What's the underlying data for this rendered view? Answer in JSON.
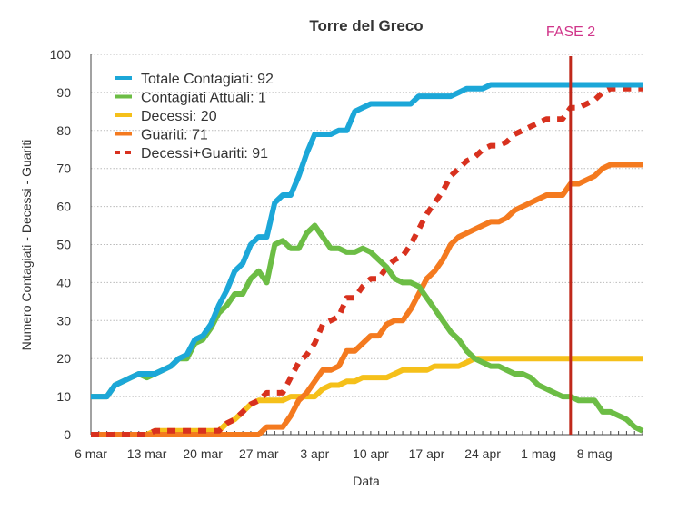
{
  "chart_data": {
    "type": "line",
    "title": "Torre del Greco",
    "annotation": {
      "label": "FASE 2",
      "x_day": 60,
      "color": "#c0281a",
      "label_color": "#d0358a"
    },
    "xlabel": "Data",
    "ylabel": "Numero Contagiati - Decessi - Guariti",
    "ylim": [
      0,
      100
    ],
    "yticks": [
      0,
      10,
      20,
      30,
      40,
      50,
      60,
      70,
      80,
      90,
      100
    ],
    "xlim_days": [
      0,
      69
    ],
    "xticks": [
      {
        "day": 0,
        "label": "6 mar"
      },
      {
        "day": 7,
        "label": "13 mar"
      },
      {
        "day": 14,
        "label": "20 mar"
      },
      {
        "day": 21,
        "label": "27 mar"
      },
      {
        "day": 28,
        "label": "3 apr"
      },
      {
        "day": 35,
        "label": "10 apr"
      },
      {
        "day": 42,
        "label": "17 apr"
      },
      {
        "day": 49,
        "label": "24 apr"
      },
      {
        "day": 56,
        "label": "1 mag"
      },
      {
        "day": 63,
        "label": "8 mag"
      }
    ],
    "grid": true,
    "legend_position": "top-left",
    "series": [
      {
        "name": "Totale Contagiati: 92",
        "color": "#1ca7d8",
        "dashed": false,
        "values": [
          10,
          10,
          10,
          13,
          14,
          15,
          16,
          16,
          16,
          17,
          18,
          20,
          21,
          25,
          26,
          29,
          34,
          38,
          43,
          45,
          50,
          52,
          52,
          61,
          63,
          63,
          68,
          74,
          79,
          79,
          79,
          80,
          80,
          85,
          86,
          87,
          87,
          87,
          87,
          87,
          87,
          89,
          89,
          89,
          89,
          89,
          90,
          91,
          91,
          91,
          92,
          92,
          92,
          92,
          92,
          92,
          92,
          92,
          92,
          92,
          92,
          92,
          92,
          92,
          92,
          92,
          92,
          92,
          92,
          92
        ]
      },
      {
        "name": "Contagiati Attuali: 1",
        "color": "#6cbd45",
        "dashed": false,
        "values": [
          10,
          10,
          10,
          13,
          14,
          15,
          16,
          15,
          16,
          17,
          18,
          20,
          20,
          24,
          25,
          28,
          32,
          34,
          37,
          37,
          41,
          43,
          40,
          50,
          51,
          49,
          49,
          53,
          55,
          52,
          49,
          49,
          48,
          48,
          49,
          48,
          46,
          44,
          41,
          40,
          40,
          39,
          36,
          33,
          30,
          27,
          25,
          22,
          20,
          19,
          18,
          18,
          17,
          16,
          16,
          15,
          13,
          12,
          11,
          10,
          10,
          9,
          9,
          9,
          6,
          6,
          5,
          4,
          2,
          1
        ]
      },
      {
        "name": "Decessi: 20",
        "color": "#f5c01a",
        "dashed": false,
        "values": [
          0,
          0,
          0,
          0,
          0,
          0,
          0,
          0,
          1,
          1,
          1,
          1,
          1,
          1,
          1,
          1,
          1,
          3,
          4,
          6,
          8,
          9,
          9,
          9,
          9,
          10,
          10,
          10,
          10,
          12,
          13,
          13,
          14,
          14,
          15,
          15,
          15,
          15,
          16,
          17,
          17,
          17,
          17,
          18,
          18,
          18,
          18,
          19,
          20,
          20,
          20,
          20,
          20,
          20,
          20,
          20,
          20,
          20,
          20,
          20,
          20,
          20,
          20,
          20,
          20,
          20,
          20,
          20,
          20,
          20
        ]
      },
      {
        "name": "Guariti: 71",
        "color": "#f47a1f",
        "dashed": false,
        "values": [
          0,
          0,
          0,
          0,
          0,
          0,
          0,
          0,
          0,
          0,
          0,
          0,
          0,
          0,
          0,
          0,
          0,
          0,
          0,
          0,
          0,
          0,
          2,
          2,
          2,
          5,
          9,
          11,
          14,
          17,
          17,
          18,
          22,
          22,
          24,
          26,
          26,
          29,
          30,
          30,
          33,
          37,
          41,
          43,
          46,
          50,
          52,
          53,
          54,
          55,
          56,
          56,
          57,
          59,
          60,
          61,
          62,
          63,
          63,
          63,
          66,
          66,
          67,
          68,
          70,
          71,
          71,
          71,
          71,
          71
        ]
      },
      {
        "name": "Decessi+Guariti: 91",
        "color": "#d8311e",
        "dashed": true,
        "values": [
          0,
          0,
          0,
          0,
          0,
          0,
          0,
          0,
          1,
          1,
          1,
          1,
          1,
          1,
          1,
          1,
          1,
          3,
          4,
          6,
          8,
          9,
          11,
          11,
          11,
          15,
          19,
          21,
          24,
          29,
          30,
          31,
          36,
          36,
          39,
          41,
          41,
          44,
          46,
          47,
          50,
          54,
          58,
          61,
          64,
          68,
          70,
          72,
          73,
          75,
          76,
          76,
          77,
          79,
          80,
          81,
          82,
          83,
          83,
          83,
          86,
          86,
          87,
          88,
          90,
          91,
          91,
          91,
          91,
          91
        ]
      }
    ]
  }
}
